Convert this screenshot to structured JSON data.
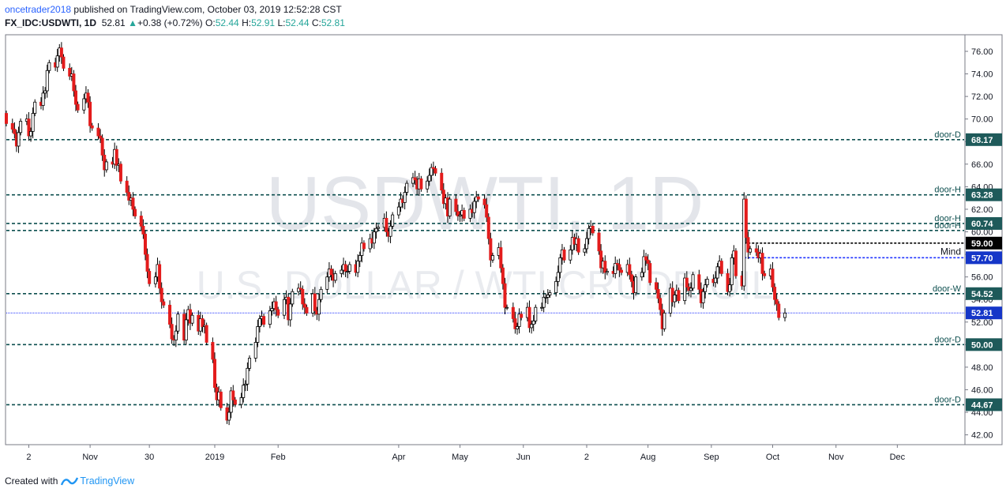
{
  "header": {
    "user": "oncetrader2018",
    "published": "published on TradingView.com, October 03, 2019 12:52:28 CST",
    "symbol": "FX_IDC:USDWTI, 1D",
    "last": "52.81",
    "arrow": "▲",
    "change": "+0.38 (+0.72%)",
    "o_label": "O:",
    "o_value": "52.44",
    "h_label": "H:",
    "h_value": "52.91",
    "l_label": "L:",
    "l_value": "52.44",
    "c_label": "C:",
    "c_value": "52.81"
  },
  "watermark": {
    "big": "USDWTI, 1D",
    "small": "U.S. DOLLAR / WTI CRUDE OIL"
  },
  "footer": {
    "created_with": "Created with",
    "brand": "TradingView"
  },
  "colors": {
    "up": "#ffffff",
    "down": "#e31c1c",
    "wick": "#000000",
    "level": "#0d4f4f",
    "blue_level": "#2034ff",
    "price_tag": "#1e5a5a",
    "last_tag": "#1536c8"
  },
  "chart_data": {
    "type": "candlestick",
    "title": "USDWTI, 1D",
    "subtitle": "U.S. DOLLAR / WTI CRUDE OIL",
    "ylim": [
      41.2,
      77.4
    ],
    "y_ticks": [
      "42.00",
      "44.00",
      "46.00",
      "48.00",
      "50.00",
      "52.00",
      "54.00",
      "56.00",
      "58.00",
      "60.00",
      "62.00",
      "64.00",
      "66.00",
      "68.00",
      "70.00",
      "72.00",
      "74.00",
      "76.00"
    ],
    "x_ticks": [
      {
        "label": "2",
        "date": "2018-10-02"
      },
      {
        "label": "Nov",
        "date": "2018-11-01"
      },
      {
        "label": "30",
        "date": "2018-11-30"
      },
      {
        "label": "2019",
        "date": "2019-01-01"
      },
      {
        "label": "Feb",
        "date": "2019-02-01"
      },
      {
        "label": "Apr",
        "date": "2019-04-01"
      },
      {
        "label": "May",
        "date": "2019-05-01"
      },
      {
        "label": "Jun",
        "date": "2019-06-01"
      },
      {
        "label": "2",
        "date": "2019-07-02"
      },
      {
        "label": "Aug",
        "date": "2019-08-01"
      },
      {
        "label": "Sep",
        "date": "2019-09-01"
      },
      {
        "label": "Oct",
        "date": "2019-10-01"
      },
      {
        "label": "Nov",
        "date": "2019-11-01"
      },
      {
        "label": "Dec",
        "date": "2019-12-01"
      }
    ],
    "levels": [
      {
        "label": "door-D",
        "value": 68.17,
        "tag": "68.17",
        "style": "dashed"
      },
      {
        "label": "door-H",
        "value": 63.28,
        "tag": "63.28",
        "style": "dashed"
      },
      {
        "label": "door-H",
        "value": 60.74,
        "tag": "60.74",
        "style": "dashed"
      },
      {
        "label": "door-H",
        "value": 60.12,
        "tag": "60.12",
        "style": "dashed"
      },
      {
        "label": "door-W",
        "value": 54.52,
        "tag": "54.52",
        "style": "dashed"
      },
      {
        "label": "door-D",
        "value": 50.0,
        "tag": "50.00",
        "style": "dashed"
      },
      {
        "label": "door-D",
        "value": 44.67,
        "tag": "44.67",
        "style": "dashed"
      }
    ],
    "short_levels": [
      {
        "label": "",
        "value": 59.0,
        "tag": "59.00",
        "from_date": "2019-09-17",
        "color": "black"
      },
      {
        "label": "Mind",
        "value": 57.7,
        "tag": "57.70",
        "from_date": "2019-09-17",
        "color": "blue"
      }
    ],
    "last_price": {
      "value": 52.81,
      "tag": "52.81"
    },
    "candles": {
      "start_date": "2018-09-21",
      "start_open": 70.5,
      "closes": [
        69.6,
        69.1,
        68.7,
        67.6,
        68.8,
        69.8,
        70.0,
        68.5,
        68.9,
        70.5,
        71.5,
        71.2,
        72.3,
        72.5,
        74.3,
        75.0,
        74.6,
        75.6,
        76.3,
        75.5,
        74.5,
        73.8,
        74.0,
        72.5,
        71.3,
        70.8,
        71.8,
        72.3,
        71.5,
        69.4,
        69.2,
        68.5,
        68.3,
        66.8,
        65.5,
        66.2,
        66.0,
        67.3,
        65.9,
        66.0,
        64.5,
        63.5,
        62.8,
        63.0,
        62.0,
        61.4,
        60.5,
        59.8,
        58.0,
        56.5,
        55.4,
        56.0,
        57.1,
        55.0,
        53.8,
        53.5,
        51.8,
        50.5,
        50.4,
        51.2,
        52.7,
        50.4,
        52.2,
        53.1,
        51.9,
        52.6,
        51.2,
        52.3,
        51.6,
        51.7,
        50.2,
        48.7,
        46.2,
        45.1,
        45.8,
        44.4,
        43.3,
        44.0,
        45.9,
        45.1,
        44.7,
        45.3,
        46.4,
        46.5,
        47.9,
        48.8,
        50.2,
        51.6,
        52.3,
        52.5,
        51.8,
        53.0,
        53.2,
        53.8,
        53.1,
        52.6,
        54.0,
        54.2,
        52.2,
        53.6,
        54.7,
        55.0,
        54.9,
        53.6,
        53.3,
        52.8,
        54.5,
        53.0,
        52.7,
        54.0,
        54.9,
        56.0,
        56.7,
        56.2,
        55.7,
        56.3,
        56.6,
        57.1,
        56.5,
        56.5,
        57.1,
        56.4,
        57.4,
        57.9,
        59.0,
        58.5,
        59.4,
        59.0,
        60.0,
        60.3,
        60.4,
        61.2,
        60.0,
        59.6,
        60.5,
        61.5,
        62.2,
        62.9,
        62.6,
        63.5,
        64.3,
        64.8,
        64.6,
        63.8,
        64.7,
        63.8,
        64.5,
        65.0,
        65.7,
        65.6,
        65.2,
        63.7,
        62.5,
        63.0,
        61.4,
        62.9,
        61.8,
        61.4,
        61.5,
        61.9,
        61.2,
        62.0,
        61.7,
        62.7,
        63.1,
        62.9,
        62.4,
        61.3,
        59.4,
        57.5,
        57.9,
        58.6,
        56.8,
        55.4,
        53.3,
        53.3,
        52.3,
        51.4,
        51.6,
        52.7,
        52.4,
        53.3,
        51.5,
        51.8,
        52.1,
        53.3,
        53.3,
        54.2,
        54.2,
        54.4,
        54.6,
        55.6,
        56.4,
        57.7,
        58.4,
        57.5,
        58.4,
        59.5,
        58.9,
        59.4,
        58.2,
        58.5,
        59.4,
        60.3,
        60.5,
        59.9,
        58.3,
        56.8,
        57.4,
        56.4,
        56.5,
        56.3,
        57.2,
        57.1,
        56.6,
        56.4,
        57.1,
        56.2,
        55.6,
        54.6,
        56.0,
        56.4,
        57.8,
        57.5,
        57.2,
        55.5,
        54.9,
        54.1,
        53.1,
        51.4,
        52.8,
        55.0,
        53.8,
        54.4,
        54.8,
        53.9,
        55.9,
        55.1,
        54.8,
        55.0,
        56.2,
        54.9,
        53.7,
        54.7,
        55.3,
        55.8,
        55.5,
        55.9,
        56.9,
        57.4,
        56.3,
        54.7,
        55.3,
        57.7,
        58.3,
        56.1,
        55.2,
        62.9,
        59.5,
        58.2,
        58.5,
        58.2,
        57.7,
        58.1,
        56.3,
        56.1,
        56.7,
        55.1,
        54.0,
        53.6,
        52.4,
        52.8
      ]
    }
  }
}
